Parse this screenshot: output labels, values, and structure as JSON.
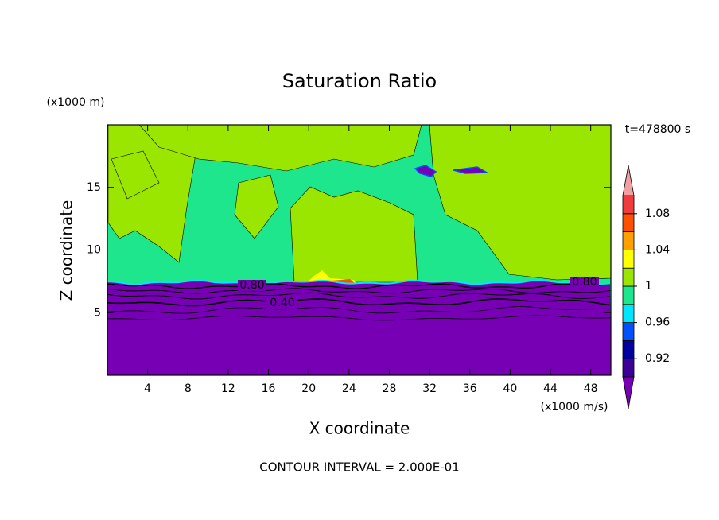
{
  "chart_data": {
    "type": "contour",
    "title": "Saturation Ratio",
    "xlabel": "X coordinate",
    "ylabel": "Z coordinate",
    "x_unit": "(x1000 m/s)",
    "y_unit": "(x1000 m)",
    "time_label": "t=478800 s",
    "footer": "CONTOUR INTERVAL = 2.000E-01",
    "xlim": [
      0,
      50
    ],
    "xticks": [
      4,
      8,
      12,
      16,
      20,
      24,
      28,
      32,
      36,
      40,
      44,
      48
    ],
    "ylim": [
      0,
      20
    ],
    "yticks": [
      5,
      10,
      15
    ],
    "contour_labels": [
      {
        "value": 0.8,
        "label": "0.80"
      },
      {
        "value": 0.4,
        "label": "0.40"
      },
      {
        "value": 0.8,
        "label": "0.80"
      }
    ],
    "colorbar": {
      "levels": [
        0.9,
        0.92,
        0.94,
        0.96,
        0.98,
        1.0,
        1.02,
        1.04,
        1.06,
        1.08,
        1.1
      ],
      "colors": [
        "#3c0096",
        "#0000a0",
        "#0050ff",
        "#00e6ff",
        "#1ee68c",
        "#9be600",
        "#ffff00",
        "#ffa000",
        "#ff5000",
        "#f03c3c"
      ],
      "under_color": "#7800b4",
      "over_color": "#f0a0a0",
      "ticks": [
        0.92,
        0.96,
        1,
        1.04,
        1.08
      ]
    }
  }
}
